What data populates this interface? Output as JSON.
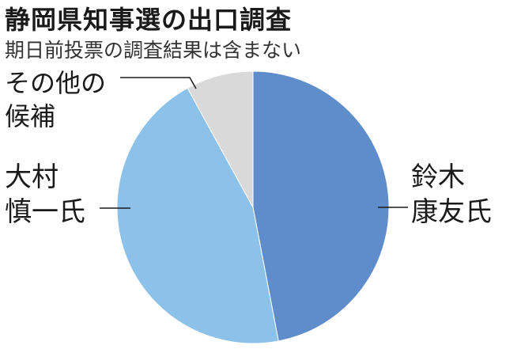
{
  "header": {
    "title": "静岡県知事選の出口調査",
    "subtitle": "期日前投票の調査結果は含まない"
  },
  "chart_data": {
    "type": "pie",
    "start_angle_deg": 0,
    "direction": "clockwise",
    "slices": [
      {
        "label_lines": [
          "鈴木",
          "康友氏"
        ],
        "value": 47,
        "color": "#5f8ccb"
      },
      {
        "label_lines": [
          "大村",
          "慎一氏"
        ],
        "value": 45,
        "color": "#8cc1ea"
      },
      {
        "label_lines": [
          "その他の",
          "候補"
        ],
        "value": 8,
        "color": "#d9d9d9"
      }
    ],
    "values_printed": false,
    "legend": "none"
  }
}
